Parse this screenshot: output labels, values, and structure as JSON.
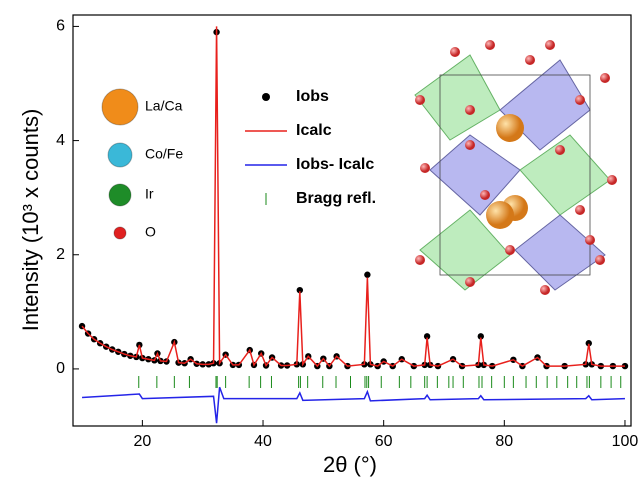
{
  "chart_data": {
    "type": "line",
    "xlabel": "2θ (°)",
    "ylabel": "Intensity (10³ x counts)",
    "xlim": [
      8.5,
      101
    ],
    "xticks": [
      20,
      40,
      60,
      80,
      100
    ],
    "ylim": [
      -1.0,
      6.2
    ],
    "yticks": [
      0,
      2,
      4,
      6
    ],
    "x": [
      10,
      11,
      12,
      13,
      14,
      15,
      16,
      17,
      18,
      19,
      19.5,
      20,
      21,
      22,
      22.5,
      23,
      24,
      25.3,
      26,
      27,
      28,
      29,
      30,
      31,
      31.8,
      32.3,
      32.8,
      33.8,
      35,
      36,
      37.8,
      38.5,
      39.7,
      40.5,
      41.5,
      43,
      44,
      45.6,
      46.1,
      46.6,
      47.5,
      49,
      50,
      51,
      52.2,
      54,
      56.8,
      57.3,
      57.8,
      59,
      60,
      61.5,
      63,
      65,
      66.8,
      67.2,
      67.7,
      69,
      71.5,
      73,
      75.7,
      76.1,
      76.6,
      78,
      81.5,
      83,
      85.5,
      87,
      90,
      93.5,
      94,
      94.5,
      96,
      98,
      100
    ],
    "series": [
      {
        "name": "Iobs",
        "kind": "dots",
        "color": "#000000",
        "values": [
          0.75,
          0.62,
          0.52,
          0.45,
          0.39,
          0.34,
          0.3,
          0.26,
          0.23,
          0.21,
          0.42,
          0.19,
          0.17,
          0.15,
          0.27,
          0.14,
          0.13,
          0.47,
          0.11,
          0.1,
          0.17,
          0.09,
          0.08,
          0.08,
          0.1,
          5.9,
          0.1,
          0.25,
          0.07,
          0.07,
          0.33,
          0.07,
          0.27,
          0.06,
          0.2,
          0.06,
          0.06,
          0.08,
          1.38,
          0.08,
          0.22,
          0.05,
          0.18,
          0.05,
          0.22,
          0.05,
          0.08,
          1.65,
          0.08,
          0.05,
          0.13,
          0.05,
          0.17,
          0.05,
          0.07,
          0.57,
          0.07,
          0.05,
          0.17,
          0.05,
          0.07,
          0.57,
          0.07,
          0.05,
          0.16,
          0.05,
          0.2,
          0.05,
          0.05,
          0.08,
          0.45,
          0.08,
          0.05,
          0.05,
          0.05
        ]
      },
      {
        "name": "Icalc",
        "kind": "line",
        "color": "#e8201c",
        "values": [
          0.75,
          0.62,
          0.52,
          0.45,
          0.39,
          0.34,
          0.3,
          0.26,
          0.23,
          0.21,
          0.42,
          0.19,
          0.17,
          0.15,
          0.27,
          0.14,
          0.13,
          0.47,
          0.11,
          0.1,
          0.17,
          0.09,
          0.08,
          0.08,
          0.1,
          6.0,
          0.1,
          0.25,
          0.07,
          0.07,
          0.33,
          0.07,
          0.27,
          0.06,
          0.2,
          0.06,
          0.06,
          0.08,
          1.36,
          0.08,
          0.22,
          0.05,
          0.18,
          0.05,
          0.22,
          0.05,
          0.08,
          1.6,
          0.08,
          0.05,
          0.13,
          0.05,
          0.17,
          0.05,
          0.07,
          0.55,
          0.07,
          0.05,
          0.17,
          0.05,
          0.07,
          0.55,
          0.07,
          0.05,
          0.16,
          0.05,
          0.2,
          0.05,
          0.05,
          0.08,
          0.44,
          0.08,
          0.05,
          0.05,
          0.05
        ]
      },
      {
        "name": "Iobs- Icalc",
        "kind": "line",
        "color": "#2424e8",
        "x": [
          10,
          19.5,
          20,
          31.8,
          32.3,
          32.8,
          33.5,
          45.6,
          46.1,
          46.6,
          56.8,
          57.3,
          57.8,
          66.8,
          67.2,
          67.7,
          75.7,
          76.1,
          76.6,
          93.5,
          94,
          94.5,
          100
        ],
        "values": [
          -0.5,
          -0.44,
          -0.52,
          -0.48,
          -0.95,
          -0.32,
          -0.52,
          -0.52,
          -0.42,
          -0.55,
          -0.52,
          -0.4,
          -0.56,
          -0.52,
          -0.46,
          -0.54,
          -0.52,
          -0.47,
          -0.54,
          -0.52,
          -0.47,
          -0.54,
          -0.52
        ]
      },
      {
        "name": "Bragg refl.",
        "kind": "ticks",
        "color": "#1a8a1a",
        "x": [
          19.4,
          22.4,
          25.3,
          27.8,
          32.2,
          32.4,
          33.8,
          37.7,
          39.6,
          41.4,
          45.9,
          46.2,
          47.4,
          49.9,
          52.1,
          54.5,
          56.9,
          57.2,
          57.5,
          59.6,
          62.6,
          64.5,
          66.8,
          67.2,
          68.9,
          70.8,
          71.5,
          73.2,
          75.8,
          76.3,
          77.9,
          80,
          81.5,
          83.6,
          85.3,
          87.1,
          88.7,
          90.5,
          92,
          93.7,
          94.1,
          96,
          97.7,
          99.3
        ]
      }
    ],
    "atom_legend": [
      {
        "label": "La/Ca",
        "color": "#f08c1a"
      },
      {
        "label": "Co/Fe",
        "color": "#3ab8d8"
      },
      {
        "label": "Ir",
        "color": "#1e8c28"
      },
      {
        "label": "O",
        "color": "#e02020"
      }
    ]
  }
}
